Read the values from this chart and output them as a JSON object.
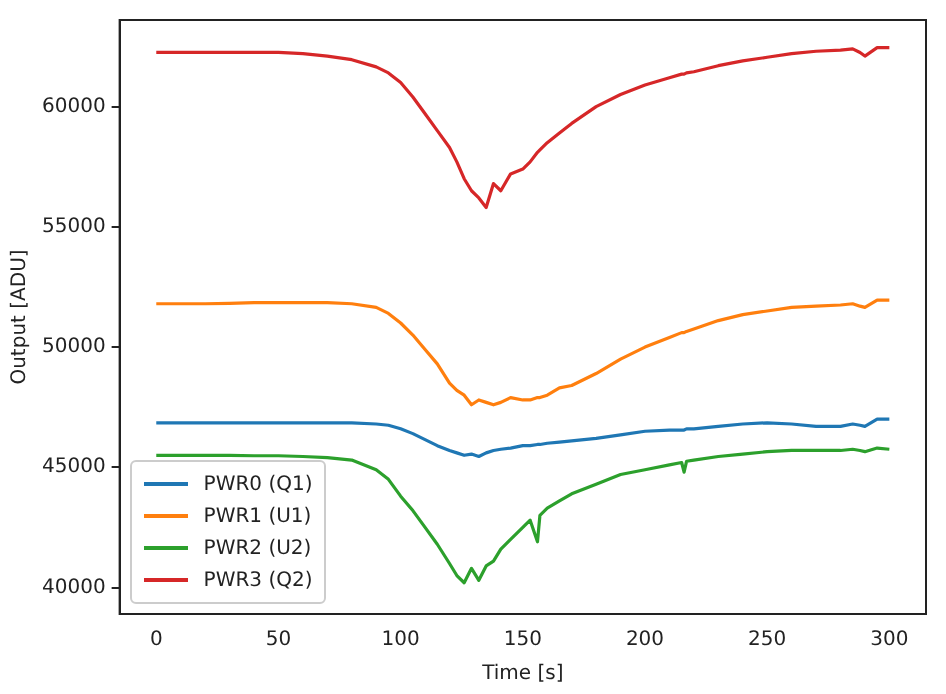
{
  "chart_data": {
    "type": "line",
    "xlabel": "Time [s]",
    "ylabel": "Output [ADU]",
    "x": [
      0,
      10,
      20,
      30,
      40,
      50,
      60,
      70,
      80,
      90,
      95,
      100,
      105,
      110,
      115,
      120,
      123,
      126,
      129,
      132,
      135,
      138,
      141,
      145,
      150,
      153,
      156,
      157,
      160,
      165,
      170,
      180,
      190,
      200,
      210,
      215,
      216,
      217,
      220,
      230,
      240,
      250,
      260,
      270,
      280,
      285,
      288,
      290,
      295,
      300
    ],
    "series": [
      {
        "name": "PWR0 (Q1)",
        "color": "#1f77b4",
        "values": [
          46850,
          46850,
          46850,
          46850,
          46850,
          46850,
          46850,
          46850,
          46850,
          46800,
          46750,
          46600,
          46400,
          46150,
          45900,
          45700,
          45600,
          45500,
          45550,
          45450,
          45600,
          45700,
          45750,
          45800,
          45900,
          45900,
          45950,
          45950,
          46000,
          46050,
          46100,
          46200,
          46350,
          46500,
          46550,
          46550,
          46550,
          46600,
          46600,
          46700,
          46800,
          46850,
          46800,
          46700,
          46700,
          46800,
          46750,
          46700,
          47000,
          47000
        ]
      },
      {
        "name": "PWR1 (U1)",
        "color": "#ff7f0e",
        "values": [
          51800,
          51800,
          51800,
          51820,
          51850,
          51850,
          51850,
          51850,
          51800,
          51650,
          51400,
          51000,
          50500,
          49900,
          49300,
          48500,
          48200,
          48000,
          47600,
          47800,
          47700,
          47600,
          47700,
          47900,
          47800,
          47800,
          47900,
          47900,
          48000,
          48300,
          48400,
          48900,
          49500,
          50000,
          50400,
          50600,
          50600,
          50650,
          50750,
          51100,
          51350,
          51500,
          51650,
          51700,
          51750,
          51800,
          51700,
          51650,
          51950,
          51950
        ]
      },
      {
        "name": "PWR2 (U2)",
        "color": "#2ca02c",
        "values": [
          45500,
          45500,
          45500,
          45500,
          45480,
          45480,
          45450,
          45400,
          45300,
          44900,
          44500,
          43800,
          43200,
          42500,
          41800,
          41000,
          40500,
          40200,
          40800,
          40300,
          40900,
          41100,
          41600,
          42000,
          42500,
          42800,
          41900,
          43000,
          43300,
          43600,
          43900,
          44300,
          44700,
          44900,
          45100,
          45200,
          44800,
          45250,
          45300,
          45450,
          45550,
          45650,
          45700,
          45700,
          45700,
          45750,
          45700,
          45650,
          45800,
          45750
        ]
      },
      {
        "name": "PWR3 (Q2)",
        "color": "#d62728",
        "values": [
          62250,
          62250,
          62250,
          62250,
          62250,
          62250,
          62200,
          62100,
          61950,
          61650,
          61400,
          61000,
          60400,
          59700,
          59000,
          58300,
          57700,
          57000,
          56500,
          56200,
          55800,
          56800,
          56500,
          57200,
          57400,
          57700,
          58100,
          58200,
          58500,
          58900,
          59300,
          60000,
          60500,
          60900,
          61200,
          61350,
          61350,
          61400,
          61450,
          61700,
          61900,
          62050,
          62200,
          62300,
          62350,
          62400,
          62250,
          62100,
          62450,
          62450
        ]
      }
    ],
    "xlim": [
      -15,
      315
    ],
    "xticks": [
      0,
      50,
      100,
      150,
      200,
      250,
      300
    ],
    "ylim": [
      38900,
      63600
    ],
    "yticks": [
      40000,
      45000,
      50000,
      55000,
      60000
    ],
    "grid": false,
    "legend": "bottom left",
    "marker": "none",
    "line_style": "solid"
  }
}
